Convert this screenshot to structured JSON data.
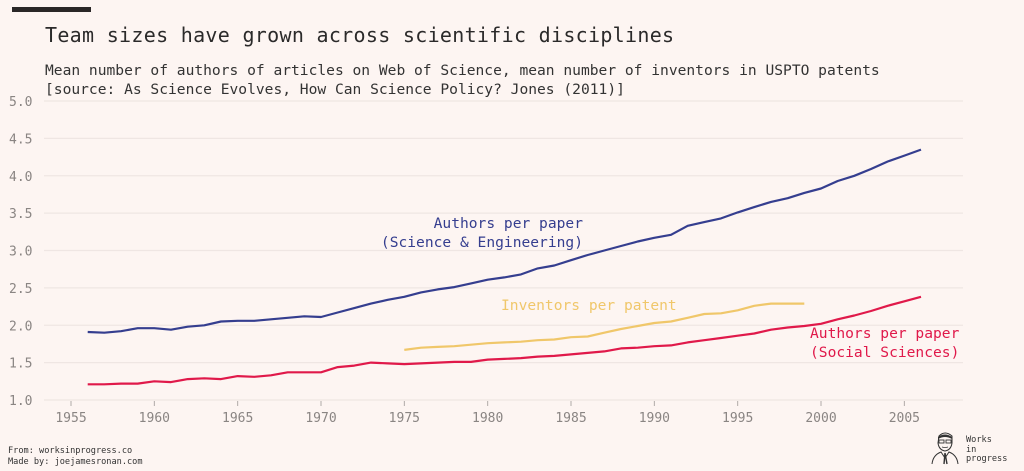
{
  "header": {
    "title": "Team sizes have grown across scientific disciplines",
    "subtitle_line1": "Mean number of authors of articles on Web of Science, mean number of inventors in USPTO patents",
    "subtitle_line2": "[source: As Science Evolves, How Can Science Policy? Jones (2011)]"
  },
  "footer": {
    "from": "From: worksinprogress.co",
    "made_by": "Made by: joejamesronan.com",
    "logo_text": [
      "Works",
      "in",
      "progress"
    ]
  },
  "colors": {
    "background": "#fdf5f2",
    "science_engineering": "#353e8f",
    "patents": "#f0c76a",
    "social_sciences": "#e0194a",
    "grid": "#efe6e3",
    "tick_text": "#8a8583"
  },
  "chart_data": {
    "type": "line",
    "title": "Team sizes have grown across scientific disciplines",
    "xlabel": "",
    "ylabel": "",
    "xlim": [
      1954,
      2009
    ],
    "ylim": [
      1.0,
      5.0
    ],
    "grid": true,
    "x_ticks": [
      1955,
      1960,
      1965,
      1970,
      1975,
      1980,
      1985,
      1990,
      1995,
      2000,
      2005
    ],
    "y_ticks": [
      "1.0",
      "1.5",
      "2.0",
      "2.5",
      "3.0",
      "3.5",
      "4.0",
      "4.5",
      "5.0"
    ],
    "series": [
      {
        "name": "Authors per paper (Science & Engineering)",
        "label_lines": [
          "Authors per paper",
          "(Science & Engineering)"
        ],
        "color": "#353e8f",
        "x": [
          1956,
          1957,
          1958,
          1959,
          1960,
          1961,
          1962,
          1963,
          1964,
          1965,
          1966,
          1967,
          1968,
          1969,
          1970,
          1971,
          1972,
          1973,
          1974,
          1975,
          1976,
          1977,
          1978,
          1979,
          1980,
          1981,
          1982,
          1983,
          1984,
          1985,
          1986,
          1987,
          1988,
          1989,
          1990,
          1991,
          1992,
          1993,
          1994,
          1995,
          1996,
          1997,
          1998,
          1999,
          2000,
          2001,
          2002,
          2003,
          2004,
          2005,
          2006
        ],
        "values": [
          1.91,
          1.9,
          1.92,
          1.96,
          1.96,
          1.94,
          1.98,
          2.0,
          2.05,
          2.06,
          2.06,
          2.08,
          2.1,
          2.12,
          2.11,
          2.17,
          2.23,
          2.29,
          2.34,
          2.38,
          2.44,
          2.48,
          2.51,
          2.56,
          2.61,
          2.64,
          2.68,
          2.76,
          2.8,
          2.87,
          2.94,
          3.0,
          3.06,
          3.12,
          3.17,
          3.21,
          3.33,
          3.38,
          3.43,
          3.51,
          3.58,
          3.65,
          3.7,
          3.77,
          3.83,
          3.93,
          4.0,
          4.09,
          4.19,
          4.27,
          4.35
        ]
      },
      {
        "name": "Inventors per patent",
        "label_lines": [
          "Inventors per patent"
        ],
        "color": "#f0c76a",
        "x": [
          1975,
          1976,
          1977,
          1978,
          1979,
          1980,
          1981,
          1982,
          1983,
          1984,
          1985,
          1986,
          1987,
          1988,
          1989,
          1990,
          1991,
          1992,
          1993,
          1994,
          1995,
          1996,
          1997,
          1998,
          1999
        ],
        "values": [
          1.67,
          1.7,
          1.71,
          1.72,
          1.74,
          1.76,
          1.77,
          1.78,
          1.8,
          1.81,
          1.84,
          1.85,
          1.9,
          1.95,
          1.99,
          2.03,
          2.05,
          2.1,
          2.15,
          2.16,
          2.2,
          2.26,
          2.29,
          2.29,
          2.29
        ]
      },
      {
        "name": "Authors per paper (Social Sciences)",
        "label_lines": [
          "Authors per paper",
          "(Social Sciences)"
        ],
        "color": "#e0194a",
        "x": [
          1956,
          1957,
          1958,
          1959,
          1960,
          1961,
          1962,
          1963,
          1964,
          1965,
          1966,
          1967,
          1968,
          1969,
          1970,
          1971,
          1972,
          1973,
          1974,
          1975,
          1976,
          1977,
          1978,
          1979,
          1980,
          1981,
          1982,
          1983,
          1984,
          1985,
          1986,
          1987,
          1988,
          1989,
          1990,
          1991,
          1992,
          1993,
          1994,
          1995,
          1996,
          1997,
          1998,
          1999,
          2000,
          2001,
          2002,
          2003,
          2004,
          2005,
          2006
        ],
        "values": [
          1.21,
          1.21,
          1.22,
          1.22,
          1.25,
          1.24,
          1.28,
          1.29,
          1.28,
          1.32,
          1.31,
          1.33,
          1.37,
          1.37,
          1.37,
          1.44,
          1.46,
          1.5,
          1.49,
          1.48,
          1.49,
          1.5,
          1.51,
          1.51,
          1.54,
          1.55,
          1.56,
          1.58,
          1.59,
          1.61,
          1.63,
          1.65,
          1.69,
          1.7,
          1.72,
          1.73,
          1.77,
          1.8,
          1.83,
          1.86,
          1.89,
          1.94,
          1.97,
          1.99,
          2.02,
          2.08,
          2.13,
          2.19,
          2.26,
          2.32,
          2.38
        ]
      }
    ]
  }
}
